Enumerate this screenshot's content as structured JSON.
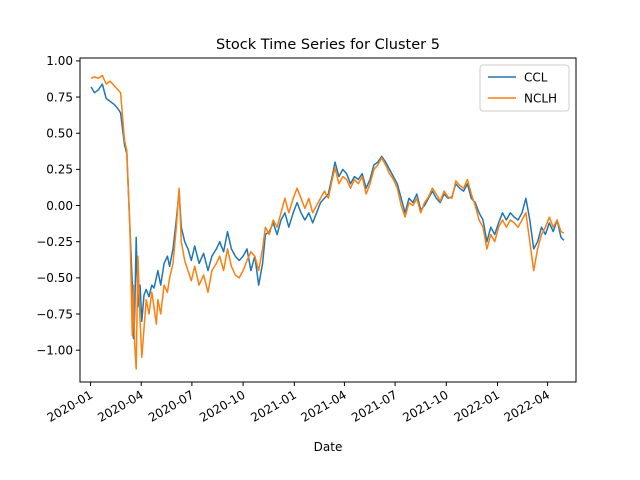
{
  "chart_data": {
    "type": "line",
    "title": "Stock Time Series for Cluster 5",
    "xlabel": "Date",
    "ylabel": "",
    "xlim": [
      "2019-12-13",
      "2022-05-22"
    ],
    "ylim": [
      -1.22,
      1.02
    ],
    "x_ticks": [
      "2020-01",
      "2020-04",
      "2020-07",
      "2020-10",
      "2021-01",
      "2021-04",
      "2021-07",
      "2021-10",
      "2022-01",
      "2022-04"
    ],
    "y_ticks": [
      1.0,
      0.75,
      0.5,
      0.25,
      0.0,
      -0.25,
      -0.5,
      -0.75,
      -1.0
    ],
    "y_tick_labels": [
      "1.00",
      "0.75",
      "0.50",
      "0.25",
      "0.00",
      "−0.25",
      "−0.50",
      "−0.75",
      "−1.00"
    ],
    "grid": false,
    "legend_position": "top-right",
    "series": [
      {
        "name": "CCL",
        "color": "#1f77b4",
        "points": [
          [
            "2020-01-02",
            0.82
          ],
          [
            "2020-01-08",
            0.78
          ],
          [
            "2020-01-15",
            0.8
          ],
          [
            "2020-01-22",
            0.84
          ],
          [
            "2020-01-29",
            0.74
          ],
          [
            "2020-02-05",
            0.72
          ],
          [
            "2020-02-12",
            0.7
          ],
          [
            "2020-02-19",
            0.67
          ],
          [
            "2020-02-24",
            0.64
          ],
          [
            "2020-03-02",
            0.42
          ],
          [
            "2020-03-06",
            0.36
          ],
          [
            "2020-03-12",
            -0.18
          ],
          [
            "2020-03-16",
            -0.55
          ],
          [
            "2020-03-18",
            -0.92
          ],
          [
            "2020-03-20",
            -0.78
          ],
          [
            "2020-03-23",
            -0.22
          ],
          [
            "2020-03-26",
            -0.7
          ],
          [
            "2020-03-30",
            -0.55
          ],
          [
            "2020-04-02",
            -0.8
          ],
          [
            "2020-04-06",
            -0.62
          ],
          [
            "2020-04-10",
            -0.58
          ],
          [
            "2020-04-15",
            -0.63
          ],
          [
            "2020-04-20",
            -0.55
          ],
          [
            "2020-04-24",
            -0.57
          ],
          [
            "2020-04-28",
            -0.5
          ],
          [
            "2020-05-01",
            -0.45
          ],
          [
            "2020-05-06",
            -0.55
          ],
          [
            "2020-05-12",
            -0.4
          ],
          [
            "2020-05-18",
            -0.35
          ],
          [
            "2020-05-22",
            -0.42
          ],
          [
            "2020-05-28",
            -0.3
          ],
          [
            "2020-06-03",
            -0.1
          ],
          [
            "2020-06-08",
            0.1
          ],
          [
            "2020-06-12",
            -0.15
          ],
          [
            "2020-06-18",
            -0.25
          ],
          [
            "2020-06-24",
            -0.3
          ],
          [
            "2020-06-30",
            -0.38
          ],
          [
            "2020-07-06",
            -0.28
          ],
          [
            "2020-07-14",
            -0.4
          ],
          [
            "2020-07-22",
            -0.33
          ],
          [
            "2020-07-30",
            -0.45
          ],
          [
            "2020-08-06",
            -0.35
          ],
          [
            "2020-08-14",
            -0.3
          ],
          [
            "2020-08-20",
            -0.25
          ],
          [
            "2020-08-27",
            -0.32
          ],
          [
            "2020-09-03",
            -0.18
          ],
          [
            "2020-09-10",
            -0.3
          ],
          [
            "2020-09-17",
            -0.35
          ],
          [
            "2020-09-24",
            -0.38
          ],
          [
            "2020-10-01",
            -0.35
          ],
          [
            "2020-10-08",
            -0.3
          ],
          [
            "2020-10-15",
            -0.45
          ],
          [
            "2020-10-22",
            -0.35
          ],
          [
            "2020-10-29",
            -0.55
          ],
          [
            "2020-11-05",
            -0.4
          ],
          [
            "2020-11-10",
            -0.2
          ],
          [
            "2020-11-17",
            -0.18
          ],
          [
            "2020-11-24",
            -0.12
          ],
          [
            "2020-12-01",
            -0.2
          ],
          [
            "2020-12-08",
            -0.1
          ],
          [
            "2020-12-15",
            -0.05
          ],
          [
            "2020-12-22",
            -0.15
          ],
          [
            "2020-12-30",
            -0.05
          ],
          [
            "2021-01-06",
            0.02
          ],
          [
            "2021-01-13",
            -0.05
          ],
          [
            "2021-01-20",
            -0.1
          ],
          [
            "2021-01-27",
            -0.05
          ],
          [
            "2021-02-03",
            -0.12
          ],
          [
            "2021-02-10",
            -0.05
          ],
          [
            "2021-02-17",
            0.02
          ],
          [
            "2021-02-24",
            0.05
          ],
          [
            "2021-03-03",
            0.08
          ],
          [
            "2021-03-10",
            0.2
          ],
          [
            "2021-03-15",
            0.3
          ],
          [
            "2021-03-22",
            0.2
          ],
          [
            "2021-03-29",
            0.25
          ],
          [
            "2021-04-05",
            0.22
          ],
          [
            "2021-04-12",
            0.15
          ],
          [
            "2021-04-19",
            0.2
          ],
          [
            "2021-04-26",
            0.18
          ],
          [
            "2021-05-03",
            0.22
          ],
          [
            "2021-05-10",
            0.12
          ],
          [
            "2021-05-17",
            0.18
          ],
          [
            "2021-05-24",
            0.28
          ],
          [
            "2021-05-31",
            0.3
          ],
          [
            "2021-06-07",
            0.34
          ],
          [
            "2021-06-14",
            0.3
          ],
          [
            "2021-06-21",
            0.25
          ],
          [
            "2021-06-28",
            0.2
          ],
          [
            "2021-07-05",
            0.15
          ],
          [
            "2021-07-12",
            0.05
          ],
          [
            "2021-07-19",
            -0.05
          ],
          [
            "2021-07-26",
            0.05
          ],
          [
            "2021-08-02",
            0.02
          ],
          [
            "2021-08-09",
            0.08
          ],
          [
            "2021-08-16",
            -0.03
          ],
          [
            "2021-08-23",
            0.0
          ],
          [
            "2021-08-30",
            0.05
          ],
          [
            "2021-09-06",
            0.1
          ],
          [
            "2021-09-13",
            0.05
          ],
          [
            "2021-09-20",
            0.02
          ],
          [
            "2021-09-27",
            0.08
          ],
          [
            "2021-10-04",
            0.05
          ],
          [
            "2021-10-11",
            0.06
          ],
          [
            "2021-10-18",
            0.15
          ],
          [
            "2021-10-25",
            0.12
          ],
          [
            "2021-11-01",
            0.1
          ],
          [
            "2021-11-08",
            0.15
          ],
          [
            "2021-11-15",
            0.05
          ],
          [
            "2021-11-22",
            0.02
          ],
          [
            "2021-11-29",
            -0.05
          ],
          [
            "2021-12-06",
            -0.1
          ],
          [
            "2021-12-13",
            -0.25
          ],
          [
            "2021-12-20",
            -0.15
          ],
          [
            "2021-12-27",
            -0.2
          ],
          [
            "2022-01-03",
            -0.12
          ],
          [
            "2022-01-10",
            -0.05
          ],
          [
            "2022-01-17",
            -0.1
          ],
          [
            "2022-01-24",
            -0.05
          ],
          [
            "2022-01-31",
            -0.08
          ],
          [
            "2022-02-07",
            -0.1
          ],
          [
            "2022-02-14",
            -0.05
          ],
          [
            "2022-02-21",
            0.05
          ],
          [
            "2022-02-28",
            -0.1
          ],
          [
            "2022-03-07",
            -0.3
          ],
          [
            "2022-03-14",
            -0.25
          ],
          [
            "2022-03-21",
            -0.15
          ],
          [
            "2022-03-28",
            -0.2
          ],
          [
            "2022-04-04",
            -0.12
          ],
          [
            "2022-04-11",
            -0.18
          ],
          [
            "2022-04-18",
            -0.1
          ],
          [
            "2022-04-25",
            -0.22
          ],
          [
            "2022-04-30",
            -0.24
          ]
        ]
      },
      {
        "name": "NCLH",
        "color": "#ff7f0e",
        "points": [
          [
            "2020-01-02",
            0.88
          ],
          [
            "2020-01-08",
            0.89
          ],
          [
            "2020-01-15",
            0.88
          ],
          [
            "2020-01-22",
            0.9
          ],
          [
            "2020-01-29",
            0.84
          ],
          [
            "2020-02-05",
            0.86
          ],
          [
            "2020-02-12",
            0.83
          ],
          [
            "2020-02-19",
            0.8
          ],
          [
            "2020-02-24",
            0.78
          ],
          [
            "2020-03-02",
            0.45
          ],
          [
            "2020-03-06",
            0.38
          ],
          [
            "2020-03-12",
            -0.2
          ],
          [
            "2020-03-16",
            -0.9
          ],
          [
            "2020-03-18",
            -0.55
          ],
          [
            "2020-03-20",
            -0.95
          ],
          [
            "2020-03-23",
            -1.13
          ],
          [
            "2020-03-26",
            -0.35
          ],
          [
            "2020-03-30",
            -0.8
          ],
          [
            "2020-04-02",
            -1.05
          ],
          [
            "2020-04-06",
            -0.85
          ],
          [
            "2020-04-10",
            -0.65
          ],
          [
            "2020-04-15",
            -0.75
          ],
          [
            "2020-04-20",
            -0.6
          ],
          [
            "2020-04-24",
            -0.7
          ],
          [
            "2020-04-28",
            -0.82
          ],
          [
            "2020-05-01",
            -0.65
          ],
          [
            "2020-05-06",
            -0.75
          ],
          [
            "2020-05-12",
            -0.55
          ],
          [
            "2020-05-18",
            -0.6
          ],
          [
            "2020-05-22",
            -0.5
          ],
          [
            "2020-05-28",
            -0.4
          ],
          [
            "2020-06-03",
            -0.15
          ],
          [
            "2020-06-08",
            0.12
          ],
          [
            "2020-06-12",
            -0.25
          ],
          [
            "2020-06-18",
            -0.38
          ],
          [
            "2020-06-24",
            -0.45
          ],
          [
            "2020-06-30",
            -0.52
          ],
          [
            "2020-07-06",
            -0.42
          ],
          [
            "2020-07-14",
            -0.55
          ],
          [
            "2020-07-22",
            -0.48
          ],
          [
            "2020-07-30",
            -0.6
          ],
          [
            "2020-08-06",
            -0.45
          ],
          [
            "2020-08-14",
            -0.4
          ],
          [
            "2020-08-20",
            -0.35
          ],
          [
            "2020-08-27",
            -0.45
          ],
          [
            "2020-09-03",
            -0.3
          ],
          [
            "2020-09-10",
            -0.42
          ],
          [
            "2020-09-17",
            -0.48
          ],
          [
            "2020-09-24",
            -0.5
          ],
          [
            "2020-10-01",
            -0.45
          ],
          [
            "2020-10-08",
            -0.38
          ],
          [
            "2020-10-15",
            -0.32
          ],
          [
            "2020-10-22",
            -0.35
          ],
          [
            "2020-10-29",
            -0.45
          ],
          [
            "2020-11-05",
            -0.3
          ],
          [
            "2020-11-10",
            -0.15
          ],
          [
            "2020-11-17",
            -0.2
          ],
          [
            "2020-11-24",
            -0.1
          ],
          [
            "2020-12-01",
            -0.15
          ],
          [
            "2020-12-08",
            -0.05
          ],
          [
            "2020-12-15",
            0.05
          ],
          [
            "2020-12-22",
            -0.05
          ],
          [
            "2020-12-30",
            0.05
          ],
          [
            "2021-01-06",
            0.12
          ],
          [
            "2021-01-13",
            0.05
          ],
          [
            "2021-01-20",
            -0.02
          ],
          [
            "2021-01-27",
            0.05
          ],
          [
            "2021-02-03",
            -0.05
          ],
          [
            "2021-02-10",
            0.0
          ],
          [
            "2021-02-17",
            0.05
          ],
          [
            "2021-02-24",
            0.1
          ],
          [
            "2021-03-03",
            0.05
          ],
          [
            "2021-03-10",
            0.18
          ],
          [
            "2021-03-15",
            0.26
          ],
          [
            "2021-03-22",
            0.15
          ],
          [
            "2021-03-29",
            0.2
          ],
          [
            "2021-04-05",
            0.18
          ],
          [
            "2021-04-12",
            0.12
          ],
          [
            "2021-04-19",
            0.18
          ],
          [
            "2021-04-26",
            0.15
          ],
          [
            "2021-05-03",
            0.2
          ],
          [
            "2021-05-10",
            0.08
          ],
          [
            "2021-05-17",
            0.15
          ],
          [
            "2021-05-24",
            0.25
          ],
          [
            "2021-05-31",
            0.28
          ],
          [
            "2021-06-07",
            0.33
          ],
          [
            "2021-06-14",
            0.28
          ],
          [
            "2021-06-21",
            0.22
          ],
          [
            "2021-06-28",
            0.18
          ],
          [
            "2021-07-05",
            0.12
          ],
          [
            "2021-07-12",
            0.0
          ],
          [
            "2021-07-19",
            -0.08
          ],
          [
            "2021-07-26",
            0.02
          ],
          [
            "2021-08-02",
            0.0
          ],
          [
            "2021-08-09",
            0.05
          ],
          [
            "2021-08-16",
            -0.05
          ],
          [
            "2021-08-23",
            0.02
          ],
          [
            "2021-08-30",
            0.06
          ],
          [
            "2021-09-06",
            0.12
          ],
          [
            "2021-09-13",
            0.08
          ],
          [
            "2021-09-20",
            0.03
          ],
          [
            "2021-09-27",
            0.1
          ],
          [
            "2021-10-04",
            0.06
          ],
          [
            "2021-10-11",
            0.05
          ],
          [
            "2021-10-18",
            0.17
          ],
          [
            "2021-10-25",
            0.14
          ],
          [
            "2021-11-01",
            0.12
          ],
          [
            "2021-11-08",
            0.18
          ],
          [
            "2021-11-15",
            0.08
          ],
          [
            "2021-11-22",
            0.0
          ],
          [
            "2021-11-29",
            -0.1
          ],
          [
            "2021-12-06",
            -0.15
          ],
          [
            "2021-12-13",
            -0.3
          ],
          [
            "2021-12-20",
            -0.2
          ],
          [
            "2021-12-27",
            -0.25
          ],
          [
            "2022-01-03",
            -0.15
          ],
          [
            "2022-01-10",
            -0.1
          ],
          [
            "2022-01-17",
            -0.15
          ],
          [
            "2022-01-24",
            -0.1
          ],
          [
            "2022-01-31",
            -0.12
          ],
          [
            "2022-02-07",
            -0.15
          ],
          [
            "2022-02-14",
            -0.1
          ],
          [
            "2022-02-21",
            -0.05
          ],
          [
            "2022-02-28",
            -0.25
          ],
          [
            "2022-03-07",
            -0.45
          ],
          [
            "2022-03-14",
            -0.3
          ],
          [
            "2022-03-21",
            -0.2
          ],
          [
            "2022-03-28",
            -0.15
          ],
          [
            "2022-04-04",
            -0.08
          ],
          [
            "2022-04-11",
            -0.15
          ],
          [
            "2022-04-18",
            -0.1
          ],
          [
            "2022-04-25",
            -0.18
          ],
          [
            "2022-04-30",
            -0.19
          ]
        ]
      }
    ]
  }
}
